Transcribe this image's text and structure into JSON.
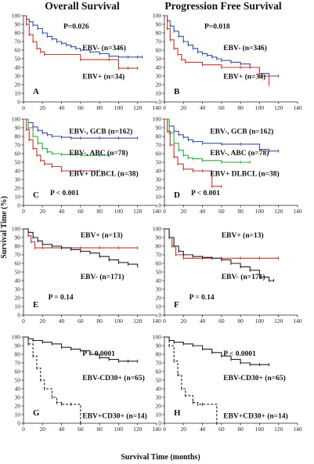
{
  "figure": {
    "left_title": "Overall Survival",
    "right_title": "Progression Free Survival",
    "y_axis_label": "Survival Time (%)",
    "x_axis_label": "Survival Time (months)"
  },
  "chart_data": [
    {
      "type": "line",
      "panel": "A",
      "column": "left",
      "row": 0,
      "p_value": "P=0.026",
      "xlim": [
        0,
        140
      ],
      "ylim": [
        0,
        100
      ],
      "xticks": [
        "0",
        "20",
        "40",
        "60",
        "80",
        "100",
        "120",
        "140"
      ],
      "yticks": [
        "0",
        "10",
        "20",
        "30",
        "40",
        "50",
        "60",
        "70",
        "80",
        "90",
        "100"
      ],
      "series": [
        {
          "name": "EBV- (n=346)",
          "color": "#3a52a6",
          "x": [
            0,
            3,
            6,
            10,
            15,
            20,
            25,
            30,
            35,
            40,
            45,
            50,
            55,
            60,
            70,
            80,
            90,
            100,
            110,
            120,
            125
          ],
          "y": [
            100,
            96,
            93,
            89,
            85,
            80,
            76,
            73,
            70,
            68,
            66,
            64,
            62,
            60,
            58,
            56,
            53,
            52,
            52,
            52,
            52
          ]
        },
        {
          "name": "EBV+ (n=34)",
          "color": "#c0392b",
          "x": [
            0,
            3,
            6,
            10,
            14,
            18,
            22,
            60,
            90,
            100,
            110,
            120
          ],
          "y": [
            100,
            90,
            78,
            70,
            62,
            58,
            55,
            49,
            49,
            39,
            39,
            39
          ]
        }
      ],
      "labels": [
        {
          "text": "EBV- (n=346)",
          "at": [
            62,
            60
          ]
        },
        {
          "text": "EBV+ (n=34)",
          "at": [
            62,
            27
          ]
        }
      ]
    },
    {
      "type": "line",
      "panel": "B",
      "column": "right",
      "row": 0,
      "p_value": "P=0.018",
      "xlim": [
        0,
        140
      ],
      "ylim": [
        0,
        100
      ],
      "xticks": [
        "0",
        "20",
        "40",
        "60",
        "80",
        "100",
        "120",
        "140"
      ],
      "yticks": [
        "0",
        "10",
        "20",
        "30",
        "40",
        "50",
        "60",
        "70",
        "80",
        "90",
        "100"
      ],
      "series": [
        {
          "name": "EBV- (n=346)",
          "color": "#3a52a6",
          "x": [
            0,
            3,
            6,
            10,
            15,
            20,
            25,
            30,
            35,
            40,
            45,
            50,
            55,
            60,
            70,
            80,
            90,
            100,
            110,
            120
          ],
          "y": [
            100,
            94,
            88,
            82,
            76,
            70,
            66,
            62,
            58,
            56,
            54,
            52,
            50,
            48,
            46,
            44,
            40,
            33,
            30,
            30
          ]
        },
        {
          "name": "EBV+ (n=34)",
          "color": "#c0392b",
          "x": [
            0,
            3,
            6,
            10,
            14,
            18,
            22,
            40,
            60,
            80,
            100,
            110
          ],
          "y": [
            100,
            85,
            72,
            62,
            55,
            49,
            46,
            43,
            40,
            40,
            30,
            20
          ]
        }
      ],
      "labels": [
        {
          "text": "EBV- (n=346)",
          "at": [
            62,
            60
          ]
        },
        {
          "text": "EBV+ (n=34)",
          "at": [
            62,
            27
          ]
        }
      ]
    },
    {
      "type": "line",
      "panel": "C",
      "column": "left",
      "row": 1,
      "p_value": "P < 0.001",
      "xlim": [
        0,
        140
      ],
      "ylim": [
        0,
        100
      ],
      "xticks": [
        "0",
        "20",
        "40",
        "60",
        "80",
        "100",
        "120",
        "140"
      ],
      "yticks": [
        "0",
        "10",
        "20",
        "30",
        "40",
        "50",
        "60",
        "70",
        "80",
        "90",
        "100"
      ],
      "series": [
        {
          "name": "EBV-, GCB (n=162)",
          "color": "#3a52a6",
          "x": [
            0,
            5,
            10,
            15,
            20,
            25,
            30,
            40,
            50,
            60,
            80,
            100,
            120
          ],
          "y": [
            100,
            96,
            91,
            87,
            84,
            82,
            80,
            79,
            78,
            78,
            78,
            78,
            78
          ]
        },
        {
          "name": "EBV-, ABC (n=78)",
          "color": "#2ea84a",
          "x": [
            0,
            5,
            10,
            15,
            20,
            25,
            30,
            40,
            60,
            80,
            90
          ],
          "y": [
            100,
            90,
            80,
            72,
            66,
            62,
            60,
            59,
            58,
            58,
            58
          ]
        },
        {
          "name": "EBV+ DLBCL (n=38)",
          "color": "#c0392b",
          "x": [
            0,
            3,
            6,
            10,
            14,
            18,
            22,
            30,
            40,
            60,
            80
          ],
          "y": [
            100,
            88,
            76,
            66,
            58,
            52,
            48,
            45,
            40,
            40,
            40
          ]
        }
      ],
      "labels": [
        {
          "text": "EBV-, GCB (n=162)",
          "at": [
            48,
            83
          ]
        },
        {
          "text": "EBV-, ABC (n=78)",
          "at": [
            48,
            58
          ]
        },
        {
          "text": "EBV+ DLBCL (n=38)",
          "at": [
            48,
            34
          ]
        }
      ]
    },
    {
      "type": "line",
      "panel": "D",
      "column": "right",
      "row": 1,
      "p_value": "P < 0.001",
      "xlim": [
        0,
        140
      ],
      "ylim": [
        0,
        100
      ],
      "xticks": [
        "0",
        "20",
        "40",
        "60",
        "80",
        "100",
        "120",
        "140"
      ],
      "yticks": [
        "0",
        "10",
        "20",
        "30",
        "40",
        "50",
        "60",
        "70",
        "80",
        "90",
        "100"
      ],
      "series": [
        {
          "name": "EBV-, GCB (n=162)",
          "color": "#3a52a6",
          "x": [
            0,
            5,
            10,
            15,
            20,
            25,
            30,
            40,
            60,
            80,
            100,
            110,
            120
          ],
          "y": [
            100,
            92,
            86,
            82,
            79,
            76,
            74,
            72,
            71,
            71,
            65,
            63,
            63
          ]
        },
        {
          "name": "EBV-, ABC (n=78)",
          "color": "#2ea84a",
          "x": [
            0,
            5,
            10,
            15,
            20,
            25,
            30,
            40,
            60,
            80,
            90
          ],
          "y": [
            100,
            84,
            72,
            64,
            58,
            55,
            54,
            52,
            50,
            50,
            50
          ]
        },
        {
          "name": "EBV+ DLBCL (n=38)",
          "color": "#c0392b",
          "x": [
            0,
            3,
            6,
            10,
            14,
            20,
            30,
            40,
            50,
            60
          ],
          "y": [
            100,
            86,
            70,
            56,
            48,
            42,
            40,
            40,
            22,
            22
          ]
        }
      ],
      "labels": [
        {
          "text": "EBV-, GCB (n=162)",
          "at": [
            48,
            83
          ]
        },
        {
          "text": "EBV-, ABC (n=78)",
          "at": [
            48,
            58
          ]
        },
        {
          "text": "EBV+ DLBCL (n=38)",
          "at": [
            48,
            34
          ]
        }
      ]
    },
    {
      "type": "line",
      "panel": "E",
      "column": "left",
      "row": 2,
      "p_value": "P = 0.14",
      "xlim": [
        0,
        140
      ],
      "ylim": [
        0,
        100
      ],
      "xticks": [
        "0",
        "20",
        "40",
        "60",
        "80",
        "100",
        "120",
        "140"
      ],
      "yticks": [
        "0",
        "10",
        "20",
        "30",
        "40",
        "50",
        "60",
        "70",
        "80",
        "90",
        "100"
      ],
      "series": [
        {
          "name": "EBV+ (n=13)",
          "color": "#c0392b",
          "x": [
            0,
            5,
            8,
            12,
            20,
            40,
            60,
            80,
            100,
            120
          ],
          "y": [
            100,
            92,
            85,
            78,
            78,
            78,
            78,
            78,
            78,
            78
          ]
        },
        {
          "name": "EBV- (n=171)",
          "color": "#222222",
          "x": [
            0,
            5,
            10,
            15,
            20,
            30,
            40,
            50,
            60,
            70,
            80,
            90,
            100,
            110,
            120
          ],
          "y": [
            100,
            96,
            90,
            86,
            82,
            80,
            78,
            76,
            74,
            72,
            68,
            64,
            61,
            59,
            57
          ]
        }
      ],
      "labels": [
        {
          "text": "EBV+ (n=13)",
          "at": [
            60,
            90
          ]
        },
        {
          "text": "EBV- (n=171)",
          "at": [
            60,
            42
          ]
        }
      ]
    },
    {
      "type": "line",
      "panel": "F",
      "column": "right",
      "row": 2,
      "p_value": "P = 0.14",
      "xlim": [
        0,
        140
      ],
      "ylim": [
        0,
        100
      ],
      "xticks": [
        "0",
        "20",
        "40",
        "60",
        "80",
        "100",
        "120",
        "140"
      ],
      "yticks": [
        "0",
        "10",
        "20",
        "30",
        "40",
        "50",
        "60",
        "70",
        "80",
        "90",
        "100"
      ],
      "series": [
        {
          "name": "EBV+ (n=13)",
          "color": "#c0392b",
          "x": [
            0,
            5,
            8,
            12,
            20,
            40,
            60,
            80,
            100,
            120
          ],
          "y": [
            100,
            90,
            80,
            70,
            66,
            66,
            66,
            66,
            66,
            66
          ]
        },
        {
          "name": "EBV- (n=171)",
          "color": "#222222",
          "x": [
            0,
            5,
            10,
            15,
            20,
            30,
            40,
            50,
            60,
            70,
            80,
            90,
            100,
            110,
            115
          ],
          "y": [
            100,
            90,
            80,
            74,
            70,
            68,
            67,
            66,
            64,
            60,
            56,
            52,
            44,
            40,
            40
          ]
        }
      ],
      "labels": [
        {
          "text": "EBV+ (n=13)",
          "at": [
            60,
            90
          ]
        },
        {
          "text": "EBV- (n=171)",
          "at": [
            60,
            42
          ]
        }
      ]
    },
    {
      "type": "line",
      "panel": "G",
      "column": "left",
      "row": 3,
      "p_value": "P < 0.0001",
      "xlim": [
        0,
        140
      ],
      "ylim": [
        0,
        100
      ],
      "xticks": [
        "0",
        "20",
        "40",
        "60",
        "80",
        "100",
        "120",
        "140"
      ],
      "yticks": [
        "0",
        "10",
        "20",
        "30",
        "40",
        "50",
        "60",
        "70",
        "80",
        "90",
        "100"
      ],
      "series": [
        {
          "name": "EBV-CD30+ (n=65)",
          "color": "#222222",
          "dashed": false,
          "x": [
            0,
            5,
            10,
            20,
            30,
            40,
            50,
            60,
            70,
            80,
            90,
            100,
            110,
            120
          ],
          "y": [
            100,
            98,
            96,
            94,
            92,
            88,
            86,
            84,
            80,
            76,
            74,
            72,
            72,
            72
          ]
        },
        {
          "name": "EBV+CD30+ (n=14)",
          "color": "#222222",
          "dashed": true,
          "x": [
            0,
            5,
            10,
            14,
            18,
            22,
            30,
            35,
            40,
            50,
            60
          ],
          "y": [
            100,
            92,
            78,
            64,
            50,
            40,
            30,
            24,
            22,
            22,
            0
          ]
        }
      ],
      "labels": [
        {
          "text": "EBV-CD30+ (n=65)",
          "at": [
            62,
            50
          ]
        },
        {
          "text": "EBV+CD30+ (n=14)",
          "at": [
            62,
            6
          ]
        }
      ]
    },
    {
      "type": "line",
      "panel": "H",
      "column": "right",
      "row": 3,
      "p_value": "P < 0.0001",
      "xlim": [
        0,
        140
      ],
      "ylim": [
        0,
        100
      ],
      "xticks": [
        "0",
        "20",
        "40",
        "60",
        "80",
        "100",
        "120",
        "140"
      ],
      "yticks": [
        "0",
        "10",
        "20",
        "30",
        "40",
        "50",
        "60",
        "70",
        "80",
        "90",
        "100"
      ],
      "series": [
        {
          "name": "EBV-CD30+ (n=65)",
          "color": "#222222",
          "dashed": false,
          "x": [
            0,
            5,
            10,
            20,
            30,
            40,
            50,
            60,
            70,
            80,
            90,
            100,
            110
          ],
          "y": [
            100,
            96,
            94,
            92,
            90,
            86,
            82,
            78,
            74,
            70,
            68,
            68,
            68
          ]
        },
        {
          "name": "EBV+CD30+ (n=14)",
          "color": "#222222",
          "dashed": true,
          "x": [
            0,
            5,
            10,
            14,
            18,
            22,
            30,
            35,
            40,
            55
          ],
          "y": [
            100,
            90,
            72,
            56,
            40,
            32,
            24,
            22,
            22,
            0
          ]
        }
      ],
      "labels": [
        {
          "text": "EBV-CD30+ (n=65)",
          "at": [
            62,
            50
          ]
        },
        {
          "text": "EBV+CD30+ (n=14)",
          "at": [
            62,
            6
          ]
        }
      ]
    }
  ]
}
